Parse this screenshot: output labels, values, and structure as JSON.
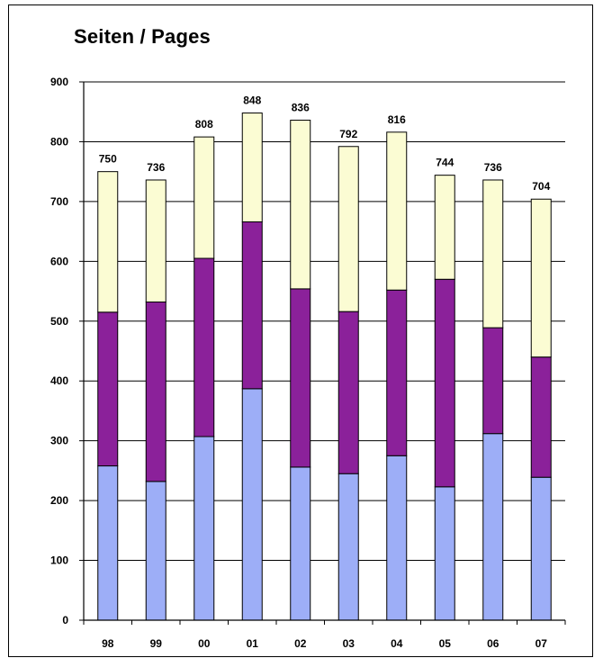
{
  "chart_data": {
    "type": "bar",
    "stacked": true,
    "title": "Seiten / Pages",
    "categories": [
      "98",
      "99",
      "00",
      "01",
      "02",
      "03",
      "04",
      "05",
      "06",
      "07"
    ],
    "series": [
      {
        "color": "#9daef7",
        "values": [
          258,
          232,
          307,
          387,
          256,
          245,
          275,
          223,
          312,
          239
        ]
      },
      {
        "color": "#8b219a",
        "values": [
          257,
          300,
          298,
          279,
          298,
          271,
          277,
          347,
          177,
          201
        ]
      },
      {
        "color": "#fbfcd3",
        "values": [
          235,
          204,
          203,
          182,
          282,
          276,
          264,
          174,
          247,
          264
        ]
      }
    ],
    "totals": [
      "750",
      "736",
      "808",
      "848",
      "836",
      "792",
      "816",
      "744",
      "736",
      "704"
    ],
    "ylim": [
      0,
      900
    ],
    "yticks": [
      "0",
      "100",
      "200",
      "300",
      "400",
      "500",
      "600",
      "700",
      "800",
      "900"
    ],
    "grid": true,
    "xlabel": "",
    "ylabel": ""
  }
}
